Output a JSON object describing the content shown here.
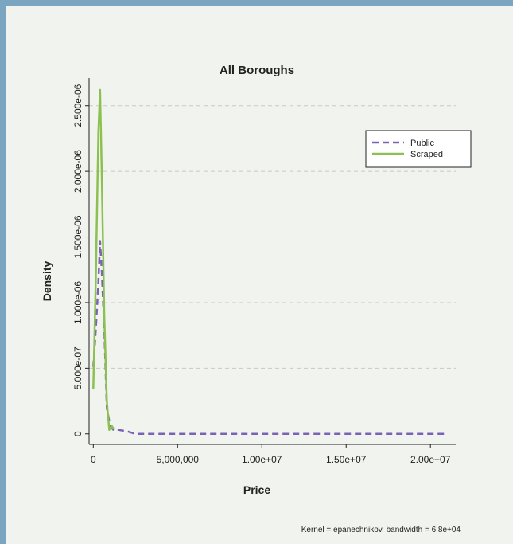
{
  "chart_data": {
    "type": "line",
    "title": "All Boroughs",
    "xlabel": "Price",
    "ylabel": "Density",
    "note": "Kernel = epanechnikov, bandwidth = 6.8e+04",
    "xlim": [
      -250000,
      21500000
    ],
    "ylim": [
      -5e-08,
      2.65e-06
    ],
    "x_ticks": [
      {
        "value": 0,
        "label": "0"
      },
      {
        "value": 5000000,
        "label": "5,000,000"
      },
      {
        "value": 10000000,
        "label": "1.00e+07"
      },
      {
        "value": 15000000,
        "label": "1.50e+07"
      },
      {
        "value": 20000000,
        "label": "2.00e+07"
      }
    ],
    "y_ticks": [
      {
        "value": 0,
        "label": "0"
      },
      {
        "value": 5e-07,
        "label": "5.000e-07"
      },
      {
        "value": 1e-06,
        "label": "1.000e-06"
      },
      {
        "value": 1.5e-06,
        "label": "1.500e-06"
      },
      {
        "value": 2e-06,
        "label": "2.000e-06"
      },
      {
        "value": 2.5e-06,
        "label": "2.500e-06"
      }
    ],
    "grid": true,
    "legend_position": "top-right",
    "series": [
      {
        "name": "Public",
        "color": "#7b62b5",
        "dash": "dashed",
        "points": [
          [
            0,
            5.1e-07
          ],
          [
            150000,
            8e-07
          ],
          [
            300000,
            1.15e-06
          ],
          [
            400000,
            1.47e-06
          ],
          [
            500000,
            1.25e-06
          ],
          [
            650000,
            8e-07
          ],
          [
            800000,
            2e-07
          ],
          [
            1000000,
            6e-08
          ],
          [
            1200000,
            3e-08
          ],
          [
            1500000,
            3e-08
          ],
          [
            2000000,
            2e-08
          ],
          [
            2500000,
            0
          ],
          [
            5000000,
            0
          ],
          [
            10000000,
            0
          ],
          [
            15000000,
            0
          ],
          [
            20000000,
            0
          ],
          [
            21000000,
            0
          ]
        ]
      },
      {
        "name": "Scraped",
        "color": "#8cc152",
        "dash": "solid",
        "points": [
          [
            0,
            3.4e-07
          ],
          [
            150000,
            1.2e-06
          ],
          [
            300000,
            2.3e-06
          ],
          [
            400000,
            2.62e-06
          ],
          [
            500000,
            2e-06
          ],
          [
            650000,
            9e-07
          ],
          [
            800000,
            2.5e-07
          ],
          [
            950000,
            3e-08
          ],
          [
            1100000,
            6e-08
          ],
          [
            1200000,
            4e-08
          ]
        ]
      }
    ]
  }
}
